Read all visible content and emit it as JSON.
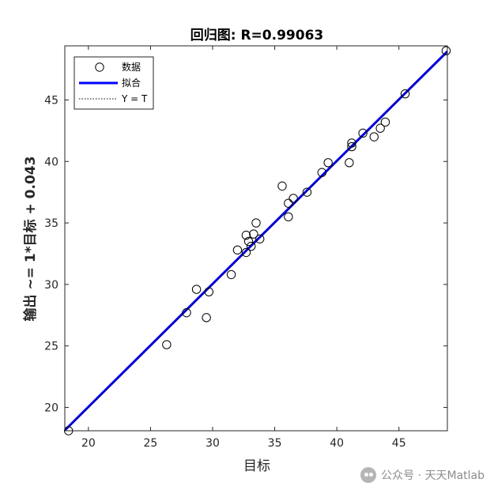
{
  "chart_data": {
    "type": "scatter",
    "title": "回归图: R=0.99063",
    "xlabel": "目标",
    "ylabel": "输出 ~= 1*目标 + 0.043",
    "xlim": [
      18.1,
      48.9
    ],
    "ylim": [
      18.1,
      49.4
    ],
    "xticks": [
      20,
      25,
      30,
      35,
      40,
      45
    ],
    "yticks": [
      20,
      25,
      30,
      35,
      40,
      45
    ],
    "grid": false,
    "legend_position": "top-left",
    "series": [
      {
        "name": "数据",
        "kind": "markers",
        "marker": "circle",
        "color": "#000000",
        "points": [
          [
            18.4,
            18.1
          ],
          [
            26.3,
            25.1
          ],
          [
            27.9,
            27.7
          ],
          [
            28.7,
            29.6
          ],
          [
            29.5,
            27.3
          ],
          [
            29.7,
            29.4
          ],
          [
            31.5,
            30.8
          ],
          [
            32.0,
            32.8
          ],
          [
            32.7,
            32.6
          ],
          [
            32.7,
            34.0
          ],
          [
            32.9,
            33.5
          ],
          [
            33.1,
            33.1
          ],
          [
            33.3,
            34.1
          ],
          [
            33.5,
            35.0
          ],
          [
            33.8,
            33.7
          ],
          [
            35.6,
            38.0
          ],
          [
            36.1,
            36.6
          ],
          [
            36.1,
            35.5
          ],
          [
            36.5,
            37.0
          ],
          [
            37.6,
            37.5
          ],
          [
            38.8,
            39.1
          ],
          [
            39.3,
            39.9
          ],
          [
            41.0,
            39.9
          ],
          [
            41.2,
            41.2
          ],
          [
            41.2,
            41.5
          ],
          [
            42.1,
            42.3
          ],
          [
            43.0,
            42.0
          ],
          [
            43.5,
            42.7
          ],
          [
            43.9,
            43.2
          ],
          [
            45.5,
            45.5
          ],
          [
            48.8,
            49.0
          ]
        ]
      },
      {
        "name": "拟合",
        "kind": "line",
        "color": "#0000ff",
        "slope": 1,
        "intercept": 0.043
      },
      {
        "name": "Y = T",
        "kind": "line",
        "style": "dotted",
        "color": "#000000",
        "slope": 1,
        "intercept": 0
      }
    ]
  },
  "watermark": {
    "text": "公众号 · 天天Matlab"
  }
}
